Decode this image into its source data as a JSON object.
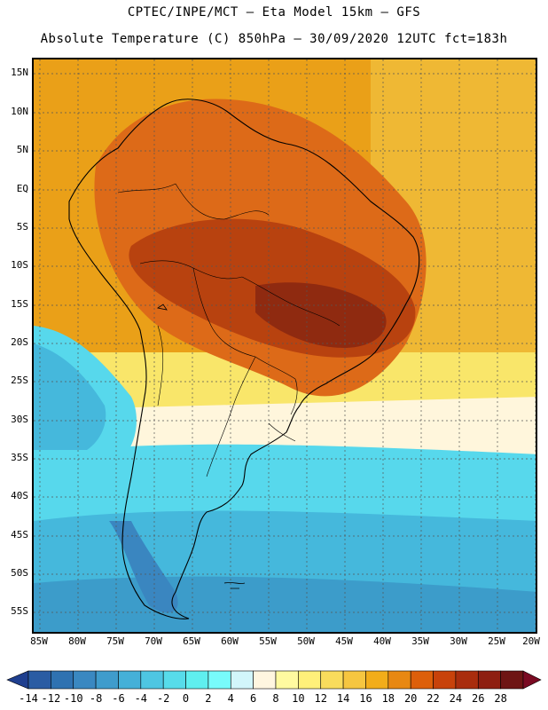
{
  "header": {
    "line1": "CPTEC/INPE/MCT –  Eta Model 15km – GFS",
    "line2": "Absolute Temperature (C) 850hPa – 30/09/2020 12UTC fct=183h"
  },
  "axes": {
    "lat_labels": [
      "15N",
      "10N",
      "5N",
      "EQ",
      "5S",
      "10S",
      "15S",
      "20S",
      "25S",
      "30S",
      "35S",
      "40S",
      "45S",
      "50S",
      "55S"
    ],
    "lon_labels": [
      "85W",
      "80W",
      "75W",
      "70W",
      "65W",
      "60W",
      "55W",
      "50W",
      "45W",
      "40W",
      "35W",
      "30W",
      "25W",
      "20W"
    ]
  },
  "legend": {
    "tick_labels": [
      "-14",
      "-12",
      "-10",
      "-8",
      "-6",
      "-4",
      "-2",
      "0",
      "2",
      "4",
      "6",
      "8",
      "10",
      "12",
      "14",
      "16",
      "18",
      "20",
      "22",
      "24",
      "26",
      "28"
    ],
    "colors": [
      "#1f3f8f",
      "#2a5ca3",
      "#2f72b1",
      "#3a88c1",
      "#3f9ccc",
      "#45b0d8",
      "#4ec6e2",
      "#57dcea",
      "#5fefef",
      "#78fbfb",
      "#d2f6fb",
      "#fff6e0",
      "#fffaa0",
      "#fff07a",
      "#f9dc5c",
      "#f6c640",
      "#f2ad1a",
      "#e88812",
      "#dd5f0a",
      "#c8420a",
      "#a92d0d",
      "#8e1f11",
      "#6e1514",
      "#7a0a22"
    ]
  },
  "regions": {
    "tropics": "#eaa018",
    "land_warm": "#dd6a18",
    "land_hot": "#b8420f",
    "land_core": "#8f2a10",
    "south_mild": "#f9e66a",
    "south_cool": "#fff6dc",
    "ocean_cold": "#57d8ec",
    "ocean_colder": "#45b8dc",
    "ocean_deep": "#3c9cca",
    "land_cold": "#3a86c0"
  }
}
